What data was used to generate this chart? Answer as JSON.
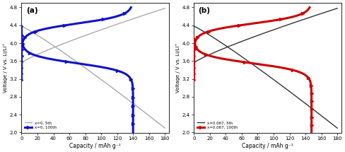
{
  "title_a": "(a)",
  "title_b": "(b)",
  "xlabel": "Capacity / mAh g⁻¹",
  "ylabel": "Voltage / V vs. Li/Li⁺",
  "ylim": [
    2.0,
    4.9
  ],
  "xlim": [
    0,
    185
  ],
  "yticks": [
    2.0,
    2.4,
    2.8,
    3.2,
    3.6,
    4.0,
    4.4,
    4.8
  ],
  "xticks": [
    0,
    20,
    40,
    60,
    80,
    100,
    120,
    140,
    160,
    180
  ],
  "legend_a": [
    "x=0, 5th",
    "x=0, 100th"
  ],
  "legend_b": [
    "x=0.067, 5th",
    "x=0.067, 100th"
  ],
  "color_5th_a": "#aaaaaa",
  "color_100th_a": "#1111cc",
  "color_5th_b": "#333333",
  "color_100th_b": "#cc0000",
  "lw_5th": 1.0,
  "lw_100th": 2.2,
  "marker_100th": ">",
  "markersize": 3.0
}
